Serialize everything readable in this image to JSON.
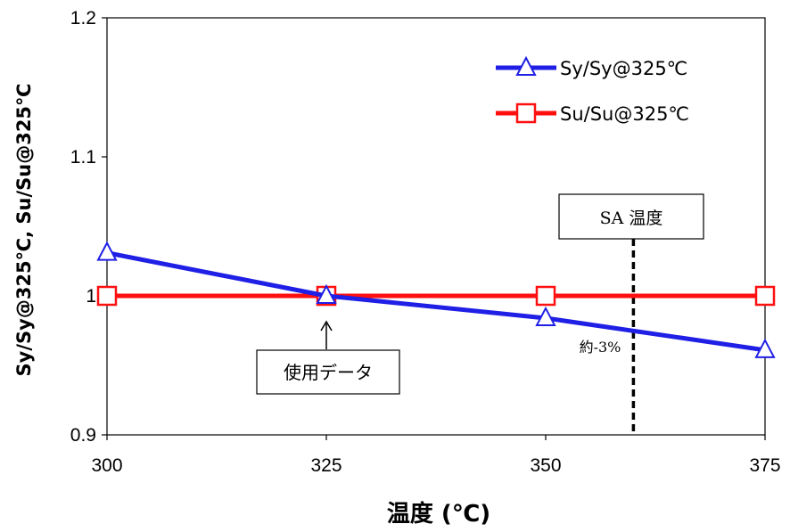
{
  "chart_data": {
    "type": "line",
    "x": [
      300,
      325,
      350,
      375
    ],
    "xlabel": "温度 (℃)",
    "ylabel": "Sy/Sy@325℃, Su/Su@325℃",
    "xlim": [
      300,
      375
    ],
    "ylim": [
      0.9,
      1.2
    ],
    "x_ticks": [
      "300",
      "325",
      "350",
      "375"
    ],
    "y_ticks": [
      "0.9",
      "1",
      "1.1",
      "1.2"
    ],
    "grid": false,
    "legend_position": "top-right",
    "series": [
      {
        "name": "Sy/Sy@325℃",
        "values": [
          1.031,
          1.0,
          0.984,
          0.961
        ],
        "color": "#1f1fe6",
        "marker": "triangle"
      },
      {
        "name": "Su/Su@325℃",
        "values": [
          1.0,
          1.0,
          1.0,
          1.0
        ],
        "color": "#ff1010",
        "marker": "square"
      }
    ],
    "annotations": {
      "sa_label": "SA 温度",
      "sa_x": 360,
      "data_label": "使用データ",
      "data_x": 325,
      "diff_label": "約-3%"
    }
  }
}
